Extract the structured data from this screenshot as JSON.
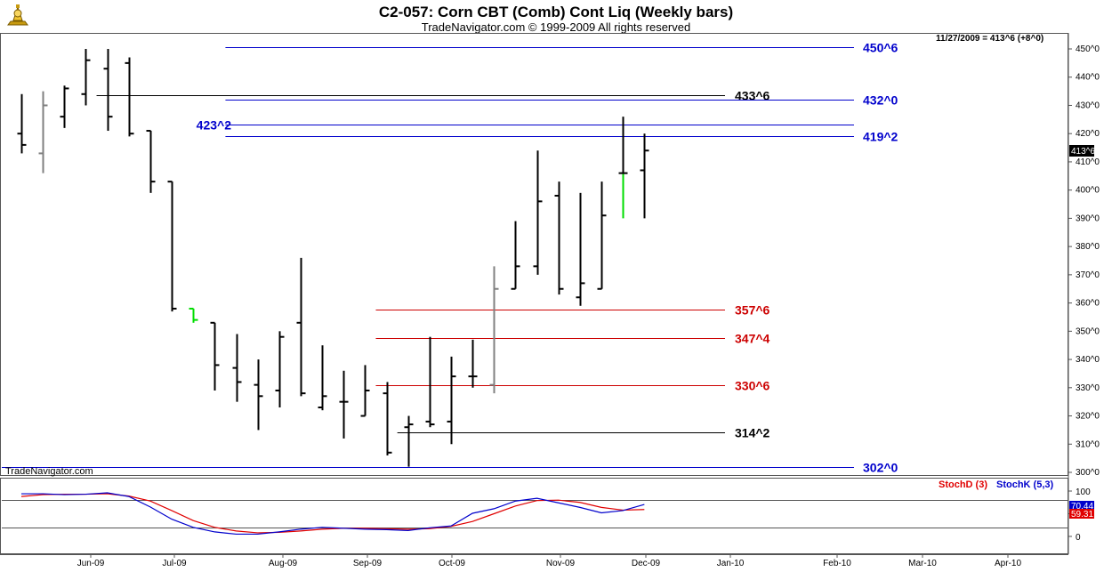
{
  "header": {
    "title": "C2-057:  Corn CBT (Comb) Cont Liq  (Weekly bars)",
    "subtitle": "TradeNavigator.com © 1999-2009 All rights reserved"
  },
  "info": {
    "last_price_text": "11/27/2009 = 413^6 (+8^0)",
    "watermark": "TradeNavigator.com",
    "current_price": "413^6"
  },
  "colors": {
    "bar_default": "#000000",
    "bar_gray": "#808080",
    "bar_green": "#00dd00",
    "line_blue": "#0000cc",
    "line_red": "#cc0000",
    "line_black": "#000000",
    "stochk": "#0000cc",
    "stochd": "#e00000"
  },
  "chart_data": {
    "type": "ohlc",
    "title": "C2-057:  Corn CBT (Comb) Cont Liq  (Weekly bars)",
    "y_axis": {
      "range": [
        297,
        456
      ],
      "ticks": [
        300,
        310,
        320,
        330,
        340,
        350,
        360,
        370,
        380,
        390,
        400,
        410,
        420,
        430,
        440,
        450
      ],
      "tick_labels": [
        "300^0",
        "310^0",
        "320^0",
        "330^0",
        "340^0",
        "350^0",
        "360^0",
        "370^0",
        "380^0",
        "390^0",
        "400^0",
        "410^0",
        "420^0",
        "430^0",
        "440^0",
        "450^0"
      ]
    },
    "x_axis": {
      "labels": [
        "Jun-09",
        "Jul-09",
        "Aug-09",
        "Sep-09",
        "Oct-09",
        "Nov-09",
        "Dec-09",
        "Jan-10",
        "Feb-10",
        "Mar-10",
        "Apr-10"
      ]
    },
    "bars": [
      {
        "w": 0,
        "o": 420,
        "h": 434,
        "l": 413,
        "c": 416,
        "color": "black"
      },
      {
        "w": 1,
        "o": 413,
        "h": 435,
        "l": 406,
        "c": 430,
        "color": "gray"
      },
      {
        "w": 2,
        "o": 426,
        "h": 437,
        "l": 422,
        "c": 436,
        "color": "black"
      },
      {
        "w": 3,
        "o": 434,
        "h": 450,
        "l": 430,
        "c": 446,
        "color": "black"
      },
      {
        "w": 4,
        "o": 443,
        "h": 450,
        "l": 421,
        "c": 426,
        "color": "black"
      },
      {
        "w": 5,
        "o": 445,
        "h": 447,
        "l": 419,
        "c": 420,
        "color": "black"
      },
      {
        "w": 6,
        "o": 421,
        "h": 421,
        "l": 399,
        "c": 403,
        "color": "black"
      },
      {
        "w": 7,
        "o": 403,
        "h": 403,
        "l": 357,
        "c": 358,
        "color": "black"
      },
      {
        "w": 8,
        "o": 358,
        "h": 358,
        "l": 353,
        "c": 354,
        "color": "green"
      },
      {
        "w": 9,
        "o": 353,
        "h": 353,
        "l": 329,
        "c": 338,
        "color": "black"
      },
      {
        "w": 10,
        "o": 337,
        "h": 349,
        "l": 325,
        "c": 332,
        "color": "black"
      },
      {
        "w": 11,
        "o": 331,
        "h": 340,
        "l": 315,
        "c": 327,
        "color": "black"
      },
      {
        "w": 12,
        "o": 329,
        "h": 350,
        "l": 323,
        "c": 348,
        "color": "black"
      },
      {
        "w": 13,
        "o": 353,
        "h": 376,
        "l": 327,
        "c": 328,
        "color": "black"
      },
      {
        "w": 14,
        "o": 323,
        "h": 345,
        "l": 322,
        "c": 327,
        "color": "black"
      },
      {
        "w": 15,
        "o": 325,
        "h": 336,
        "l": 312,
        "c": 325,
        "color": "black"
      },
      {
        "w": 16,
        "o": 320,
        "h": 338,
        "l": 320,
        "c": 329,
        "color": "black"
      },
      {
        "w": 17,
        "o": 328,
        "h": 332,
        "l": 306,
        "c": 307,
        "color": "black"
      },
      {
        "w": 18,
        "o": 316,
        "h": 320,
        "l": 302,
        "c": 317,
        "color": "black"
      },
      {
        "w": 19,
        "o": 318,
        "h": 348,
        "l": 316,
        "c": 317,
        "color": "black"
      },
      {
        "w": 20,
        "o": 318,
        "h": 341,
        "l": 310,
        "c": 334,
        "color": "black"
      },
      {
        "w": 21,
        "o": 334,
        "h": 347,
        "l": 330,
        "c": 334,
        "color": "black"
      },
      {
        "w": 22,
        "o": 331,
        "h": 373,
        "l": 328,
        "c": 365,
        "color": "gray"
      },
      {
        "w": 23,
        "o": 365,
        "h": 389,
        "l": 365,
        "c": 373,
        "color": "black"
      },
      {
        "w": 24,
        "o": 373,
        "h": 414,
        "l": 370,
        "c": 396,
        "color": "black"
      },
      {
        "w": 25,
        "o": 398,
        "h": 403,
        "l": 363,
        "c": 365,
        "color": "black"
      },
      {
        "w": 26,
        "o": 362,
        "h": 399,
        "l": 359,
        "c": 367,
        "color": "black"
      },
      {
        "w": 27,
        "o": 365,
        "h": 403,
        "l": 365,
        "c": 391,
        "color": "black"
      },
      {
        "w": 28,
        "o": 406,
        "h": 426,
        "l": 390,
        "c": 406,
        "color": "green_black"
      },
      {
        "w": 29,
        "o": 407,
        "h": 420,
        "l": 390,
        "c": 414,
        "color": "black"
      }
    ],
    "levels": [
      {
        "label": "450^6",
        "value": 450.75,
        "color": "blue",
        "x_start_week": 9.5,
        "label_side": "right"
      },
      {
        "label": "433^6",
        "value": 433.75,
        "color": "black",
        "x_start_week": 3.5,
        "label_side": "mid"
      },
      {
        "label": "432^0",
        "value": 432.0,
        "color": "blue",
        "x_start_week": 9.5,
        "label_side": "right"
      },
      {
        "label": "423^2",
        "value": 423.25,
        "color": "blue",
        "x_start_week": 9.5,
        "label_side": "left"
      },
      {
        "label": "419^2",
        "value": 419.25,
        "color": "blue",
        "x_start_week": 9.5,
        "label_side": "right"
      },
      {
        "label": "357^6",
        "value": 357.75,
        "color": "red",
        "x_start_week": 16.5,
        "label_side": "mid"
      },
      {
        "label": "347^4",
        "value": 347.5,
        "color": "red",
        "x_start_week": 16.5,
        "label_side": "mid"
      },
      {
        "label": "330^6",
        "value": 330.75,
        "color": "red",
        "x_start_week": 16.5,
        "label_side": "mid"
      },
      {
        "label": "314^2",
        "value": 314.25,
        "color": "black",
        "x_start_week": 17.5,
        "label_side": "mid"
      },
      {
        "label": "302^0",
        "value": 302.0,
        "color": "blue",
        "x_start_week": -1,
        "label_side": "right"
      }
    ]
  },
  "stochastic": {
    "stochd_label": "StochD (3)",
    "stochk_label": "StochK (5,3)",
    "stochk_value": "70.44",
    "stochd_value": "59.31",
    "range": [
      0,
      100
    ],
    "ticks": [
      0,
      50,
      100
    ],
    "reference_levels": [
      80,
      20
    ],
    "stochk": [
      94,
      94,
      92,
      93,
      96,
      88,
      65,
      38,
      20,
      10,
      5,
      5,
      10,
      16,
      20,
      18,
      16,
      15,
      13,
      19,
      23,
      51,
      61,
      78,
      84,
      74,
      64,
      52,
      57,
      70.44
    ],
    "stochd": [
      88,
      92,
      93,
      93,
      94,
      89,
      78,
      57,
      35,
      20,
      12,
      8,
      9,
      12,
      16,
      18,
      18,
      17,
      16,
      17,
      22,
      33,
      50,
      67,
      79,
      80,
      75,
      64,
      58,
      59.31
    ]
  }
}
